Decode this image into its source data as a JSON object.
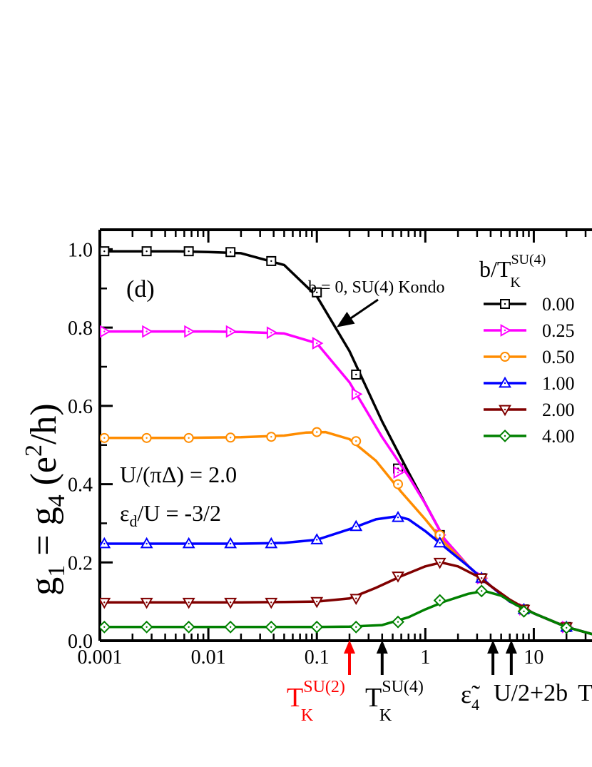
{
  "chart_data": {
    "type": "line",
    "panel_label": "(d)",
    "ylabel": {
      "main": "g",
      "sub1": "1",
      "eq": " = g",
      "sub2": "4",
      "open": " (e",
      "sup": "2",
      "close": "/h)"
    },
    "x_scale": "log",
    "xlim": [
      0.001,
      40
    ],
    "ylim": [
      0.0,
      1.05
    ],
    "x_ticks": [
      {
        "value": 0.001,
        "label": "0.001"
      },
      {
        "value": 0.01,
        "label": "0.01"
      },
      {
        "value": 0.1,
        "label": "0.1"
      },
      {
        "value": 1,
        "label": "1"
      },
      {
        "value": 10,
        "label": "10"
      }
    ],
    "y_ticks": [
      {
        "value": 0.0,
        "label": "0.0"
      },
      {
        "value": 0.2,
        "label": "0.2"
      },
      {
        "value": 0.4,
        "label": "0.4"
      },
      {
        "value": 0.6,
        "label": "0.6"
      },
      {
        "value": 0.8,
        "label": "0.8"
      },
      {
        "value": 1.0,
        "label": "1.0"
      }
    ],
    "legend": {
      "title_main": "b/T",
      "title_sup": "SU(4)",
      "title_sub": "K",
      "placement": "top-right"
    },
    "series": [
      {
        "name": "0.00",
        "color": "#000000",
        "marker": "square",
        "x": [
          0.001,
          0.002,
          0.005,
          0.01,
          0.02,
          0.05,
          0.1,
          0.2,
          0.4,
          0.7,
          1.0,
          1.5,
          2.5,
          4,
          6,
          10,
          20,
          40
        ],
        "y": [
          0.995,
          0.995,
          0.995,
          0.993,
          0.99,
          0.96,
          0.88,
          0.74,
          0.56,
          0.43,
          0.35,
          0.26,
          0.19,
          0.14,
          0.1,
          0.07,
          0.035,
          0.012
        ],
        "mx": [
          0.0011,
          0.0027,
          0.0066,
          0.016,
          0.038,
          0.1,
          0.23,
          0.56,
          1.36,
          3.3,
          8.1,
          20,
          50
        ],
        "my": [
          0.995,
          0.995,
          0.995,
          0.993,
          0.97,
          0.89,
          0.68,
          0.44,
          0.27,
          0.16,
          0.08,
          0.035,
          0.012
        ]
      },
      {
        "name": "0.25",
        "color": "#ff00ff",
        "marker": "triangle-right",
        "x": [
          0.001,
          0.002,
          0.005,
          0.01,
          0.02,
          0.05,
          0.1,
          0.2,
          0.4,
          0.7,
          1.0,
          1.5,
          2.5,
          4,
          6,
          10,
          20,
          40
        ],
        "y": [
          0.79,
          0.79,
          0.79,
          0.79,
          0.789,
          0.785,
          0.76,
          0.66,
          0.52,
          0.42,
          0.35,
          0.26,
          0.19,
          0.14,
          0.1,
          0.07,
          0.035,
          0.012
        ],
        "mx": [
          0.0011,
          0.0027,
          0.0066,
          0.016,
          0.038,
          0.1,
          0.23,
          0.56,
          1.36,
          3.3,
          8.1,
          20,
          50
        ],
        "my": [
          0.79,
          0.79,
          0.79,
          0.79,
          0.787,
          0.76,
          0.63,
          0.43,
          0.27,
          0.16,
          0.08,
          0.035,
          0.012
        ]
      },
      {
        "name": "0.50",
        "color": "#ff8c00",
        "marker": "circle",
        "x": [
          0.001,
          0.002,
          0.005,
          0.01,
          0.02,
          0.05,
          0.08,
          0.12,
          0.2,
          0.35,
          0.6,
          1.0,
          1.5,
          2.5,
          4,
          6,
          10,
          20,
          40
        ],
        "y": [
          0.518,
          0.518,
          0.518,
          0.519,
          0.52,
          0.524,
          0.532,
          0.533,
          0.515,
          0.46,
          0.38,
          0.31,
          0.25,
          0.19,
          0.14,
          0.1,
          0.07,
          0.035,
          0.012
        ],
        "mx": [
          0.0011,
          0.0027,
          0.0066,
          0.016,
          0.038,
          0.1,
          0.23,
          0.56,
          1.36,
          3.3,
          8.1,
          20,
          50
        ],
        "my": [
          0.518,
          0.518,
          0.518,
          0.519,
          0.521,
          0.533,
          0.51,
          0.4,
          0.27,
          0.16,
          0.08,
          0.035,
          0.012
        ]
      },
      {
        "name": "1.00",
        "color": "#0000ff",
        "marker": "triangle-up",
        "x": [
          0.001,
          0.002,
          0.005,
          0.01,
          0.02,
          0.05,
          0.1,
          0.2,
          0.35,
          0.55,
          0.7,
          1.0,
          1.5,
          2.5,
          4,
          6,
          10,
          20,
          40
        ],
        "y": [
          0.248,
          0.248,
          0.248,
          0.248,
          0.248,
          0.25,
          0.258,
          0.285,
          0.31,
          0.318,
          0.31,
          0.28,
          0.24,
          0.19,
          0.14,
          0.1,
          0.07,
          0.035,
          0.012
        ],
        "mx": [
          0.0011,
          0.0027,
          0.0066,
          0.016,
          0.038,
          0.1,
          0.23,
          0.56,
          1.36,
          3.3,
          8.1,
          20,
          50
        ],
        "my": [
          0.248,
          0.248,
          0.248,
          0.248,
          0.248,
          0.258,
          0.292,
          0.315,
          0.25,
          0.16,
          0.08,
          0.035,
          0.012
        ]
      },
      {
        "name": "2.00",
        "color": "#800000",
        "marker": "triangle-down",
        "x": [
          0.001,
          0.002,
          0.005,
          0.01,
          0.02,
          0.05,
          0.1,
          0.2,
          0.35,
          0.6,
          1.0,
          1.4,
          2.0,
          3.0,
          4,
          6,
          10,
          20,
          40
        ],
        "y": [
          0.098,
          0.098,
          0.098,
          0.098,
          0.098,
          0.099,
          0.1,
          0.108,
          0.135,
          0.165,
          0.19,
          0.2,
          0.19,
          0.165,
          0.14,
          0.105,
          0.07,
          0.035,
          0.012
        ],
        "mx": [
          0.0011,
          0.0027,
          0.0066,
          0.016,
          0.038,
          0.1,
          0.23,
          0.56,
          1.36,
          3.3,
          8.1,
          20,
          50
        ],
        "my": [
          0.098,
          0.098,
          0.098,
          0.098,
          0.098,
          0.1,
          0.108,
          0.165,
          0.2,
          0.16,
          0.08,
          0.035,
          0.012
        ]
      },
      {
        "name": "4.00",
        "color": "#008000",
        "marker": "diamond",
        "x": [
          0.001,
          0.002,
          0.005,
          0.01,
          0.02,
          0.05,
          0.1,
          0.2,
          0.4,
          0.7,
          1.0,
          1.5,
          2.5,
          3.5,
          5,
          7,
          10,
          20,
          40
        ],
        "y": [
          0.035,
          0.035,
          0.035,
          0.035,
          0.035,
          0.035,
          0.035,
          0.036,
          0.04,
          0.06,
          0.08,
          0.1,
          0.12,
          0.127,
          0.115,
          0.09,
          0.07,
          0.035,
          0.012
        ],
        "mx": [
          0.0011,
          0.0027,
          0.0066,
          0.016,
          0.038,
          0.1,
          0.23,
          0.56,
          1.36,
          3.3,
          8.1,
          20,
          50
        ],
        "my": [
          0.035,
          0.035,
          0.035,
          0.035,
          0.035,
          0.035,
          0.035,
          0.048,
          0.103,
          0.127,
          0.075,
          0.033,
          0.012
        ]
      }
    ],
    "annotations": {
      "kondo": {
        "text": "b = 0, SU(4) Kondo",
        "x_text": 0.15,
        "y_text": 0.87,
        "x_tip": 0.2,
        "y_tip": 0.79
      },
      "params": [
        {
          "text_main": "U/(πΔ) = 2.0",
          "x": 0.0012,
          "y": 0.43
        },
        {
          "text_pre": "ε",
          "text_sub": "d",
          "text_post": "/U = -3/2",
          "x": 0.0012,
          "y": 0.33
        }
      ],
      "arrows": [
        {
          "x": 0.2,
          "color": "#ff0000",
          "main": "T",
          "sup": "SU(2)",
          "sub": "K"
        },
        {
          "x": 0.4,
          "color": "#000000",
          "main": "T",
          "sup": "SU(4)",
          "sub": "K"
        },
        {
          "x": 4.2,
          "color": "#000000",
          "main": "ε̃",
          "sub": "4"
        },
        {
          "x": 6.2,
          "color": "#000000",
          "main": "U/2+2b",
          "trailing": "T"
        }
      ]
    }
  }
}
